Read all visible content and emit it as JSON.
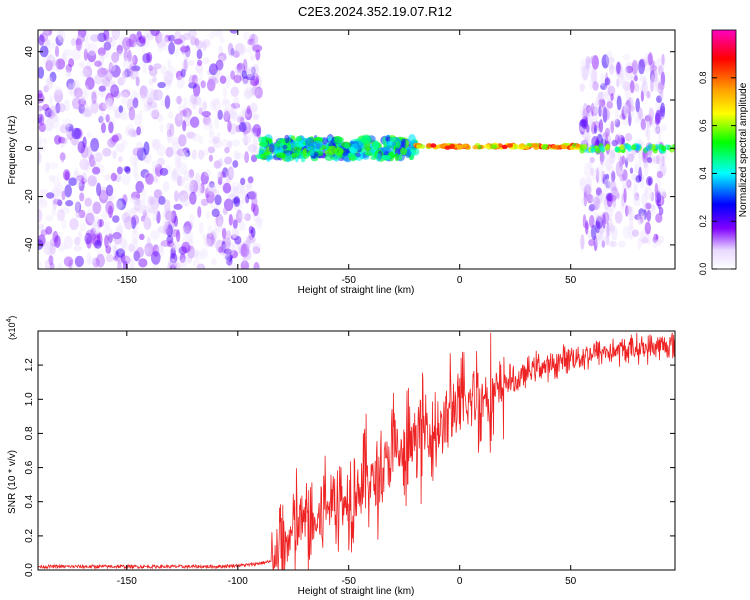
{
  "title": "C2E3.2024.352.19.07.R12",
  "chart_data": [
    {
      "type": "heatmap",
      "title": "C2E3.2024.352.19.07.R12",
      "xlabel": "Height of straight line (km)",
      "ylabel": "Frequency (Hz)",
      "xlim": [
        -190,
        97
      ],
      "ylim": [
        -50,
        49
      ],
      "xticks": [
        -150,
        -100,
        -50,
        0,
        50
      ],
      "yticks": [
        -40,
        -20,
        0,
        20,
        40
      ],
      "colorbar": {
        "label": "Normalized spectral amplitude",
        "range": [
          0,
          1
        ],
        "ticks": [
          0.0,
          0.2,
          0.4,
          0.6,
          0.8
        ]
      },
      "regions": [
        {
          "x": [
            -190,
            -90
          ],
          "description": "broadband noise spanning full frequency range"
        },
        {
          "x": [
            -90,
            -20
          ],
          "centre_hz": 0,
          "description": "narrow band near 0 Hz"
        },
        {
          "x": [
            -20,
            55
          ],
          "centre_hz": 1,
          "description": "strong tone at about 1 Hz"
        },
        {
          "x": [
            55,
            97
          ],
          "description": "strong tone near 0 Hz with broadband noise"
        }
      ]
    },
    {
      "type": "line",
      "xlabel": "Height of straight line (km)",
      "ylabel": "SNR (10 * v/v)",
      "y_multiplier": "(x10^4)",
      "y_multiplier_base": "(x10",
      "y_multiplier_exp": "4",
      "y_multiplier_close": ")",
      "xlim": [
        -190,
        97
      ],
      "ylim": [
        0,
        1.4
      ],
      "xticks": [
        -150,
        -100,
        -50,
        0,
        50
      ],
      "yticks": [
        0.0,
        0.2,
        0.4,
        0.6,
        0.8,
        1.0,
        1.2
      ],
      "color": "#ee2222",
      "series": [
        {
          "x": [
            -190,
            -170,
            -150,
            -130,
            -110,
            -95,
            -85,
            -80,
            -76,
            -72,
            -68,
            -65,
            -62,
            -58,
            -55,
            -52,
            -48,
            -45,
            -42,
            -38,
            -35,
            -32,
            -28,
            -25,
            -22,
            -20,
            -18,
            -15,
            -12,
            -10,
            -8,
            -5,
            -3,
            0,
            2,
            5,
            8,
            10,
            12,
            15,
            18,
            22,
            25,
            30,
            35,
            40,
            45,
            50,
            55,
            60,
            65,
            70,
            75,
            80,
            85,
            90,
            97
          ],
          "values": [
            0.02,
            0.02,
            0.02,
            0.02,
            0.02,
            0.03,
            0.05,
            0.12,
            0.2,
            0.28,
            0.3,
            0.25,
            0.35,
            0.4,
            0.45,
            0.38,
            0.5,
            0.48,
            0.55,
            0.52,
            0.6,
            0.65,
            0.7,
            0.62,
            0.72,
            0.8,
            0.75,
            0.85,
            0.78,
            0.88,
            0.82,
            0.92,
            0.95,
            0.98,
            0.9,
            1.0,
            1.05,
            0.95,
            1.08,
            1.0,
            1.05,
            1.12,
            1.1,
            1.15,
            1.2,
            1.18,
            1.22,
            1.25,
            1.25,
            1.27,
            1.28,
            1.28,
            1.29,
            1.3,
            1.3,
            1.31,
            1.32
          ]
        }
      ]
    }
  ]
}
